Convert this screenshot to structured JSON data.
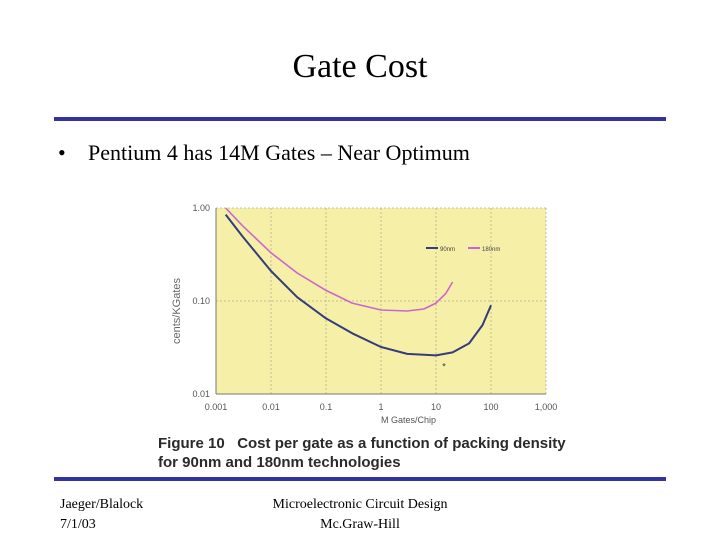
{
  "slide": {
    "title": "Gate Cost",
    "bullet_marker": "•",
    "bullet_text": "Pentium 4 has 14M Gates – Near Optimum"
  },
  "figure": {
    "caption_line1": "Figure 10   Cost per gate as a function of packing density",
    "caption_line2": "for 90nm and 180nm technologies"
  },
  "footer": {
    "author": "Jaeger/Blalock",
    "date": "7/1/03",
    "book_title": "Microelectronic Circuit Design",
    "publisher": "Mc.Graw-Hill"
  },
  "colors": {
    "rule": "#3333a0",
    "plot_bg": "#f6efa8",
    "series_90nm": "#333d7a",
    "series_180nm": "#cc66cc"
  },
  "chart_data": {
    "type": "line",
    "xlabel": "M Gates/Chip",
    "ylabel": "cents/KGates",
    "x_scale": "log",
    "y_scale": "log",
    "xlim": [
      0.001,
      1000
    ],
    "ylim": [
      0.01,
      1.0
    ],
    "x_ticks": [
      "0.001",
      "0.01",
      "0.1",
      "1",
      "10",
      "100",
      "1,000"
    ],
    "x_tick_values": [
      0.001,
      0.01,
      0.1,
      1,
      10,
      100,
      1000
    ],
    "y_ticks": [
      "1.00",
      "0.10",
      "0.01"
    ],
    "y_tick_values": [
      1.0,
      0.1,
      0.01
    ],
    "grid": true,
    "legend": "top-right",
    "series": [
      {
        "name": "90nm",
        "x": [
          0.0015,
          0.003,
          0.01,
          0.03,
          0.1,
          0.3,
          1,
          3,
          10,
          20,
          40,
          70,
          100
        ],
        "values": [
          0.85,
          0.5,
          0.21,
          0.11,
          0.065,
          0.045,
          0.032,
          0.027,
          0.026,
          0.028,
          0.035,
          0.055,
          0.09
        ]
      },
      {
        "name": "180nm",
        "x": [
          0.0015,
          0.003,
          0.01,
          0.03,
          0.1,
          0.3,
          1,
          3,
          6,
          10,
          15,
          20
        ],
        "values": [
          1.0,
          0.65,
          0.33,
          0.2,
          0.13,
          0.095,
          0.08,
          0.078,
          0.082,
          0.095,
          0.12,
          0.16
        ]
      }
    ],
    "annotations": [
      "*"
    ]
  }
}
